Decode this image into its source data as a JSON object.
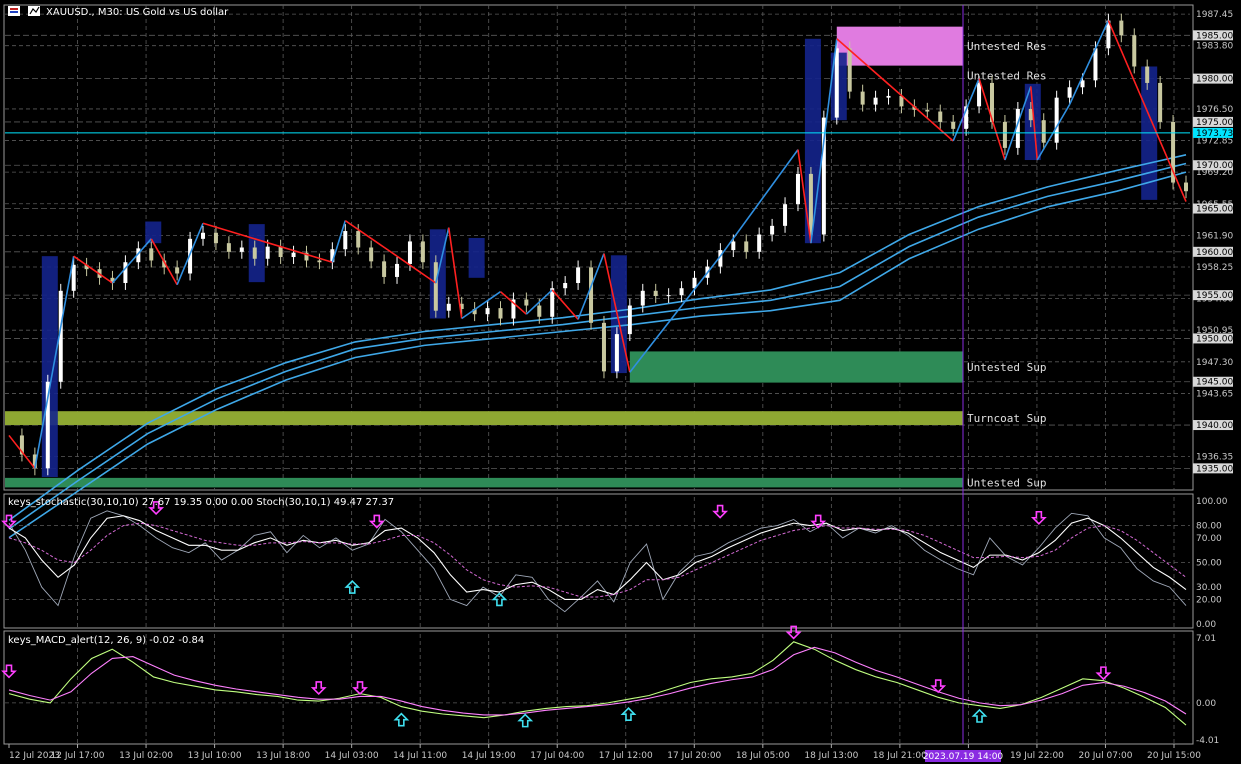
{
  "window": {
    "title": "XAUUSD., M30:  US Gold vs US dollar"
  },
  "colors": {
    "background": "#000000",
    "grid": "#5a5a5a",
    "candle_up": "#ffffff",
    "candle_down": "#c8c8a0",
    "zigzag_up": "#2f8fe0",
    "zigzag_down": "#ff2020",
    "ma": "#3fa8e8",
    "resistance_zone": "#e07be0",
    "support_zone": "#2e8b57",
    "turncoat_zone": "#8ea832",
    "block_zone": "#14238c",
    "crosshair": "#8a2be2",
    "current_price_line": "#00e5ff",
    "stoch_main": "#9fa8b8",
    "stoch_signal": "#ffffff",
    "stoch_slow": "#d46ad4",
    "macd_main": "#c0ff80",
    "macd_signal": "#ff80ff",
    "arrow_up": "#40e0f0",
    "arrow_down": "#ff40ff"
  },
  "chart_data": [
    {
      "type": "candlestick",
      "title": "XAUUSD., M30:  US Gold vs US dollar",
      "symbol": "XAUUSD.",
      "timeframe": "M30",
      "ylim": [
        1932.5,
        1988.5
      ],
      "y_ticks": [
        1987.45,
        1983.8,
        1976.5,
        1972.85,
        1969.2,
        1965.55,
        1961.9,
        1958.25,
        1954.6,
        1950.95,
        1947.3,
        1943.65,
        1936.35
      ],
      "y_boxed_levels": [
        1985.0,
        1980.0,
        1975.0,
        1970.0,
        1965.0,
        1960.0,
        1955.0,
        1950.0,
        1945.0,
        1940.0,
        1935.0
      ],
      "current_price": 1973.73,
      "current_price_label": "1973.73",
      "x_tick_labels": [
        "12 Jul 2023",
        "12 Jul 17:00",
        "13 Jul 02:00",
        "13 Jul 10:00",
        "13 Jul 18:00",
        "14 Jul 03:00",
        "14 Jul 11:00",
        "14 Jul 19:00",
        "17 Jul 04:00",
        "17 Jul 12:00",
        "17 Jul 20:00",
        "18 Jul 05:00",
        "18 Jul 13:00",
        "18 Jul 21:00",
        "19 Jul",
        "19 Jul 22:00",
        "20 Jul 07:00",
        "20 Jul 15:00"
      ],
      "crosshair_label": "2023.07.19 14:00",
      "zones": [
        {
          "label": "Untested Res",
          "kind": "resistance",
          "low": 1981.5,
          "high": 1986.0
        },
        {
          "label": "Untested Res",
          "kind": "resistance",
          "low": 1979.2,
          "high": 1981.5
        },
        {
          "label": "Untested Sup",
          "kind": "support",
          "low": 1944.9,
          "high": 1948.5
        },
        {
          "label": "Turncoat Sup",
          "kind": "turncoat",
          "low": 1940.0,
          "high": 1941.6
        },
        {
          "label": "Untested Sup",
          "kind": "support",
          "low": 1932.8,
          "high": 1933.9
        }
      ],
      "zigzag": [
        [
          0,
          1938.8
        ],
        [
          2,
          1935.0
        ],
        [
          5,
          1959.5
        ],
        [
          8,
          1956.4
        ],
        [
          11,
          1961.5
        ],
        [
          13,
          1956.2
        ],
        [
          15,
          1963.3
        ],
        [
          25,
          1958.8
        ],
        [
          26,
          1963.6
        ],
        [
          30,
          1959.5
        ],
        [
          33,
          1956.4
        ],
        [
          34,
          1962.8
        ],
        [
          35,
          1952.3
        ],
        [
          38,
          1955.4
        ],
        [
          40,
          1952.8
        ],
        [
          42,
          1955.6
        ],
        [
          44,
          1952.2
        ],
        [
          46,
          1959.8
        ],
        [
          48,
          1946.1
        ],
        [
          55,
          1959.5
        ],
        [
          61,
          1971.8
        ],
        [
          62,
          1961.0
        ],
        [
          64,
          1984.6
        ],
        [
          73,
          1972.8
        ],
        [
          75,
          1980.0
        ],
        [
          77,
          1970.6
        ],
        [
          79,
          1979.1
        ],
        [
          79.5,
          1970.6
        ],
        [
          82,
          1977.0
        ],
        [
          85,
          1986.7
        ],
        [
          91,
          1965.8
        ]
      ],
      "price_path": [
        1938.8,
        1936.6,
        1935.0,
        1945.0,
        1955.5,
        1958.5,
        1958.0,
        1957.0,
        1956.4,
        1958.8,
        1960.4,
        1959.0,
        1958.2,
        1957.5,
        1961.5,
        1962.2,
        1961.0,
        1960.0,
        1960.5,
        1959.2,
        1960.6,
        1959.4,
        1959.9,
        1959.0,
        1958.8,
        1960.3,
        1962.4,
        1960.5,
        1958.9,
        1957.1,
        1958.6,
        1961.2,
        1958.8,
        1953.2,
        1954.0,
        1953.4,
        1952.8,
        1953.5,
        1952.3,
        1954.5,
        1953.8,
        1952.5,
        1955.8,
        1956.4,
        1958.2,
        1951.8,
        1946.2,
        1950.5,
        1953.8,
        1955.5,
        1954.9,
        1955.0,
        1955.8,
        1957.0,
        1958.3,
        1960.2,
        1961.2,
        1960.0,
        1962.0,
        1963.0,
        1965.5,
        1969.0,
        1962.0,
        1975.5,
        1983.5,
        1978.5,
        1977.0,
        1977.8,
        1978.0,
        1976.8,
        1976.4,
        1976.2,
        1975.0,
        1974.2,
        1976.8,
        1979.5,
        1975.0,
        1972.0,
        1976.5,
        1975.2,
        1972.6,
        1977.8,
        1979.0,
        1979.8,
        1983.5,
        1986.7,
        1985.0,
        1981.4,
        1979.5,
        1975.0,
        1968.0,
        1967.0
      ],
      "moving_averages": [
        {
          "values": [
            1929.0,
            1934.8,
            1940.2,
            1944.2,
            1947.2,
            1949.6,
            1950.8,
            1951.6,
            1952.4,
            1953.4,
            1954.6,
            1955.6,
            1957.6,
            1962.0,
            1965.2,
            1967.5,
            1969.4,
            1971.2
          ]
        },
        {
          "values": [
            1928.0,
            1933.6,
            1939.0,
            1943.0,
            1946.2,
            1948.8,
            1950.0,
            1950.8,
            1951.6,
            1952.6,
            1953.6,
            1954.4,
            1956.0,
            1960.6,
            1964.0,
            1966.4,
            1968.2,
            1970.2
          ]
        },
        {
          "values": [
            1927.0,
            1932.4,
            1937.8,
            1941.8,
            1945.2,
            1947.8,
            1949.2,
            1950.0,
            1950.8,
            1951.6,
            1952.6,
            1953.2,
            1954.4,
            1959.2,
            1962.6,
            1965.2,
            1967.0,
            1969.2
          ]
        }
      ]
    },
    {
      "type": "line",
      "title": "keys_stochastic(30,10,10) 27.67 19.35 0.00 0.00 Stoch(30,10,1) 49.47 27.37",
      "ylim": [
        0,
        100
      ],
      "y_ticks": [
        100.0,
        80.0,
        70.0,
        50.0,
        30.0,
        20.0,
        0.0
      ],
      "series": [
        {
          "values": [
            82,
            60,
            30,
            15,
            55,
            86,
            92,
            88,
            80,
            70,
            62,
            58,
            66,
            52,
            60,
            72,
            75,
            58,
            72,
            62,
            70,
            60,
            65,
            85,
            75,
            60,
            45,
            20,
            15,
            30,
            22,
            40,
            38,
            20,
            10,
            22,
            35,
            18,
            50,
            65,
            20,
            42,
            55,
            58,
            66,
            72,
            78,
            80,
            85,
            75,
            82,
            70,
            78,
            74,
            80,
            72,
            60,
            52,
            45,
            40,
            70,
            55,
            48,
            62,
            78,
            90,
            88,
            70,
            62,
            45,
            35,
            30,
            15
          ]
        },
        {
          "values": [
            78,
            70,
            52,
            38,
            48,
            70,
            86,
            88,
            84,
            76,
            70,
            64,
            64,
            60,
            60,
            66,
            70,
            64,
            68,
            66,
            68,
            64,
            66,
            76,
            78,
            70,
            58,
            40,
            26,
            28,
            26,
            32,
            34,
            28,
            20,
            20,
            28,
            24,
            36,
            50,
            36,
            40,
            50,
            55,
            62,
            68,
            74,
            78,
            82,
            80,
            82,
            76,
            78,
            76,
            78,
            74,
            66,
            58,
            52,
            46,
            56,
            56,
            52,
            58,
            68,
            82,
            86,
            80,
            70,
            58,
            46,
            38,
            28
          ]
        },
        {
          "values": [
            70,
            66,
            60,
            52,
            50,
            60,
            72,
            80,
            82,
            80,
            76,
            72,
            68,
            66,
            64,
            64,
            66,
            66,
            67,
            66,
            66,
            65,
            65,
            68,
            72,
            72,
            66,
            56,
            44,
            36,
            32,
            30,
            31,
            30,
            26,
            22,
            22,
            24,
            28,
            36,
            36,
            38,
            44,
            50,
            56,
            62,
            68,
            72,
            76,
            78,
            80,
            78,
            78,
            77,
            77,
            76,
            72,
            66,
            60,
            54,
            54,
            55,
            54,
            55,
            60,
            70,
            78,
            80,
            76,
            68,
            58,
            48,
            38
          ]
        }
      ],
      "arrows_up": [
        [
          14,
          30
        ],
        [
          20,
          20
        ]
      ],
      "arrows_down": [
        [
          0,
          85
        ],
        [
          6,
          96
        ],
        [
          15,
          85
        ],
        [
          29,
          93
        ],
        [
          33,
          85
        ],
        [
          42,
          88
        ]
      ]
    },
    {
      "type": "line",
      "title": "keys_MACD_alert(12, 26, 9) -0.02 -0.84",
      "ylim": [
        -4.01,
        7.01
      ],
      "y_ticks": [
        7.01,
        0.0,
        -4.01
      ],
      "series": [
        {
          "values": [
            1.0,
            0.4,
            0.0,
            2.6,
            4.8,
            5.8,
            4.4,
            2.8,
            2.2,
            1.8,
            1.4,
            1.2,
            0.9,
            0.7,
            0.3,
            0.2,
            0.5,
            1.0,
            0.6,
            -0.4,
            -0.9,
            -1.2,
            -1.4,
            -1.6,
            -1.3,
            -0.9,
            -0.6,
            -0.4,
            -0.3,
            0.0,
            0.4,
            0.8,
            1.5,
            2.2,
            2.6,
            2.8,
            3.2,
            4.6,
            6.6,
            5.8,
            4.6,
            3.6,
            2.8,
            2.2,
            1.4,
            0.6,
            0.0,
            -0.3,
            -0.6,
            -0.2,
            0.6,
            1.6,
            2.6,
            2.4,
            1.6,
            0.6,
            -0.5,
            -2.4
          ]
        },
        {
          "values": [
            1.4,
            0.8,
            0.3,
            1.2,
            3.2,
            4.8,
            5.0,
            4.0,
            3.0,
            2.4,
            1.9,
            1.5,
            1.2,
            0.9,
            0.6,
            0.4,
            0.4,
            0.7,
            0.7,
            0.2,
            -0.4,
            -0.8,
            -1.1,
            -1.3,
            -1.3,
            -1.1,
            -0.8,
            -0.6,
            -0.4,
            -0.2,
            0.1,
            0.5,
            1.0,
            1.6,
            2.1,
            2.5,
            2.8,
            3.6,
            5.2,
            6.0,
            5.4,
            4.4,
            3.5,
            2.8,
            2.0,
            1.2,
            0.5,
            0.0,
            -0.3,
            -0.2,
            0.3,
            1.0,
            1.9,
            2.2,
            1.8,
            1.1,
            0.2,
            -1.2
          ]
        }
      ],
      "arrows_up": [
        [
          19,
          -1.6
        ],
        [
          25,
          -1.7
        ],
        [
          30,
          -1.0
        ],
        [
          47,
          -1.2
        ]
      ],
      "arrows_down": [
        [
          0,
          3.2
        ],
        [
          15,
          1.4
        ],
        [
          17,
          1.4
        ],
        [
          38,
          7.4
        ],
        [
          45,
          1.6
        ],
        [
          53,
          3.0
        ]
      ]
    }
  ]
}
